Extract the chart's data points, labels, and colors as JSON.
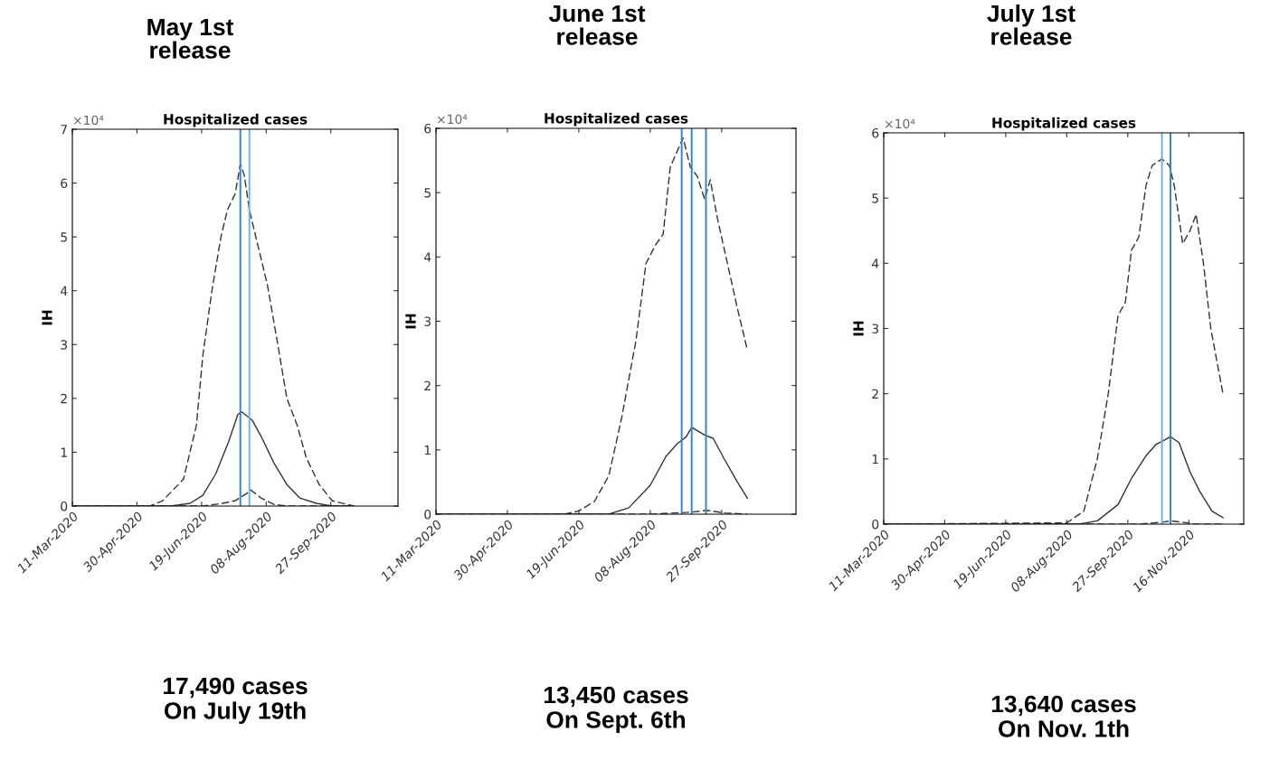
{
  "chart_data": [
    {
      "type": "line",
      "title": "May 1st\nrelease",
      "subtitle": "Hospitalized cases",
      "ylabel": "IH",
      "annotations": [
        "×10⁴",
        "17,490 cases\nOn July 19th"
      ],
      "xlim": [
        "2020-03-11",
        "2020-11-18"
      ],
      "xticks": [
        {
          "value": "2020-03-11",
          "label": "11-Mar-2020"
        },
        {
          "value": "2020-04-30",
          "label": "30-Apr-2020"
        },
        {
          "value": "2020-06-19",
          "label": "19-Jun-2020"
        },
        {
          "value": "2020-08-08",
          "label": "08-Aug-2020"
        },
        {
          "value": "2020-09-27",
          "label": "27-Sep-2020"
        }
      ],
      "ylim": [
        0,
        7
      ],
      "yticks": [
        0,
        1,
        2,
        3,
        4,
        5,
        6,
        7
      ],
      "grid": false,
      "marker": "none",
      "ref_lines": [
        {
          "axis": "x",
          "value": "2020-07-19",
          "label": null,
          "color": "#2f86cc"
        },
        {
          "axis": "x",
          "value": "2020-07-26",
          "label": null,
          "color": "#6bb3e6"
        }
      ],
      "series": [
        {
          "color": "#333333",
          "line_style": "dashed",
          "x": [
            "2020-03-11",
            "2020-05-10",
            "2020-05-20",
            "2020-06-05",
            "2020-06-15",
            "2020-06-20",
            "2020-06-27",
            "2020-07-04",
            "2020-07-09",
            "2020-07-15",
            "2020-07-19",
            "2020-07-22",
            "2020-07-26",
            "2020-08-02",
            "2020-08-09",
            "2020-08-17",
            "2020-08-24",
            "2020-09-01",
            "2020-09-08",
            "2020-09-18",
            "2020-09-28",
            "2020-10-15"
          ],
          "values": [
            0,
            0,
            0.1,
            0.5,
            1.5,
            2.8,
            4.0,
            5.0,
            5.5,
            5.8,
            6.35,
            6.15,
            5.5,
            4.8,
            4.1,
            3.0,
            2.0,
            1.5,
            0.9,
            0.4,
            0.1,
            0
          ]
        },
        {
          "color": "#333333",
          "line_style": "solid",
          "x": [
            "2020-03-11",
            "2020-05-26",
            "2020-06-10",
            "2020-06-20",
            "2020-06-30",
            "2020-07-10",
            "2020-07-17",
            "2020-07-20",
            "2020-07-28",
            "2020-08-04",
            "2020-08-14",
            "2020-08-24",
            "2020-09-03",
            "2020-09-16",
            "2020-09-28",
            "2020-10-15"
          ],
          "values": [
            0,
            0,
            0.05,
            0.2,
            0.6,
            1.2,
            1.7,
            1.75,
            1.6,
            1.3,
            0.8,
            0.4,
            0.15,
            0.05,
            0,
            0
          ]
        },
        {
          "color": "#333333",
          "line_style": "dashed",
          "x": [
            "2020-03-11",
            "2020-06-20",
            "2020-07-05",
            "2020-07-15",
            "2020-07-25",
            "2020-07-27",
            "2020-08-04",
            "2020-08-14",
            "2020-08-24",
            "2020-10-15"
          ],
          "values": [
            0,
            0,
            0.05,
            0.1,
            0.25,
            0.3,
            0.15,
            0.03,
            0,
            0
          ]
        }
      ]
    },
    {
      "type": "line",
      "title": "June 1st\nrelease",
      "subtitle": "Hospitalized cases",
      "ylabel": "IH",
      "annotations": [
        "×10⁴",
        "13,450 cases\nOn Sept. 6th"
      ],
      "xlim": [
        "2020-03-11",
        "2020-11-18"
      ],
      "xticks": [
        {
          "value": "2020-03-11",
          "label": "11-Mar-2020"
        },
        {
          "value": "2020-04-30",
          "label": "30-Apr-2020"
        },
        {
          "value": "2020-06-19",
          "label": "19-Jun-2020"
        },
        {
          "value": "2020-08-08",
          "label": "08-Aug-2020"
        },
        {
          "value": "2020-09-27",
          "label": "27-Sep-2020"
        }
      ],
      "ylim": [
        0,
        6
      ],
      "yticks": [
        0,
        1,
        2,
        3,
        4,
        5,
        6
      ],
      "grid": false,
      "marker": "none",
      "ref_lines": [
        {
          "axis": "x",
          "value": "2020-08-30",
          "label": null,
          "color": "#2f86cc"
        },
        {
          "axis": "x",
          "value": "2020-09-06",
          "label": null,
          "color": "#2f86cc"
        },
        {
          "axis": "x",
          "value": "2020-09-16",
          "label": null,
          "color": "#2f86cc"
        }
      ],
      "series": [
        {
          "color": "#333333",
          "line_style": "dashed",
          "x": [
            "2020-03-11",
            "2020-06-09",
            "2020-06-19",
            "2020-06-30",
            "2020-07-10",
            "2020-07-19",
            "2020-07-29",
            "2020-08-05",
            "2020-08-12",
            "2020-08-17",
            "2020-08-22",
            "2020-08-25",
            "2020-08-31",
            "2020-09-05",
            "2020-09-10",
            "2020-09-15",
            "2020-09-19",
            "2020-09-24",
            "2020-10-01",
            "2020-10-08",
            "2020-10-15"
          ],
          "values": [
            0,
            0,
            0.05,
            0.2,
            0.6,
            1.5,
            2.7,
            3.9,
            4.2,
            4.35,
            5.4,
            5.55,
            5.85,
            5.4,
            5.25,
            4.9,
            5.2,
            4.6,
            3.9,
            3.2,
            2.55
          ]
        },
        {
          "color": "#333333",
          "line_style": "solid",
          "x": [
            "2020-03-11",
            "2020-07-10",
            "2020-07-24",
            "2020-08-08",
            "2020-08-19",
            "2020-08-27",
            "2020-09-02",
            "2020-09-06",
            "2020-09-15",
            "2020-09-21",
            "2020-09-29",
            "2020-10-08",
            "2020-10-15"
          ],
          "values": [
            0,
            0,
            0.1,
            0.45,
            0.9,
            1.1,
            1.2,
            1.35,
            1.23,
            1.18,
            0.85,
            0.5,
            0.25
          ]
        },
        {
          "color": "#333333",
          "line_style": "dashed",
          "x": [
            "2020-03-11",
            "2020-08-08",
            "2020-09-05",
            "2020-09-17",
            "2020-09-29",
            "2020-10-15"
          ],
          "values": [
            0,
            0,
            0.03,
            0.06,
            0.02,
            0
          ]
        }
      ]
    },
    {
      "type": "line",
      "title": "July 1st\nrelease",
      "subtitle": "Hospitalized cases",
      "ylabel": "IH",
      "annotations": [
        "×10⁴",
        "13,640 cases\nOn Nov. 1th"
      ],
      "xlim": [
        "2020-03-11",
        "2020-12-31"
      ],
      "xticks": [
        {
          "value": "2020-03-11",
          "label": "11-Mar-2020"
        },
        {
          "value": "2020-04-30",
          "label": "30-Apr-2020"
        },
        {
          "value": "2020-06-19",
          "label": "19-Jun-2020"
        },
        {
          "value": "2020-08-08",
          "label": "08-Aug-2020"
        },
        {
          "value": "2020-09-27",
          "label": "27-Sep-2020"
        },
        {
          "value": "2020-11-16",
          "label": "16-Nov-2020"
        }
      ],
      "ylim": [
        0,
        6
      ],
      "yticks": [
        0,
        1,
        2,
        3,
        4,
        5,
        6
      ],
      "grid": false,
      "marker": "none",
      "ref_lines": [
        {
          "axis": "x",
          "value": "2020-10-25",
          "label": null,
          "color": "#6bb3e6"
        },
        {
          "axis": "x",
          "value": "2020-11-01",
          "label": null,
          "color": "#2f86cc"
        }
      ],
      "series": [
        {
          "color": "#333333",
          "line_style": "dashed",
          "x": [
            "2020-03-11",
            "2020-08-08",
            "2020-08-22",
            "2020-09-02",
            "2020-09-11",
            "2020-09-19",
            "2020-09-25",
            "2020-09-30",
            "2020-10-06",
            "2020-10-12",
            "2020-10-17",
            "2020-10-25",
            "2020-10-31",
            "2020-11-04",
            "2020-11-11",
            "2020-11-17",
            "2020-11-22",
            "2020-11-28",
            "2020-12-04",
            "2020-12-14"
          ],
          "values": [
            0,
            0.02,
            0.2,
            1.0,
            2.0,
            3.2,
            3.4,
            4.2,
            4.4,
            5.2,
            5.5,
            5.6,
            5.5,
            5.2,
            4.3,
            4.5,
            4.75,
            4.0,
            3.0,
            2.0
          ]
        },
        {
          "color": "#333333",
          "line_style": "solid",
          "x": [
            "2020-03-11",
            "2020-08-18",
            "2020-09-02",
            "2020-09-19",
            "2020-09-30",
            "2020-10-12",
            "2020-10-20",
            "2020-11-01",
            "2020-11-08",
            "2020-11-17",
            "2020-11-25",
            "2020-12-05",
            "2020-12-14"
          ],
          "values": [
            0,
            0,
            0.05,
            0.3,
            0.7,
            1.05,
            1.22,
            1.34,
            1.25,
            0.8,
            0.5,
            0.2,
            0.1
          ]
        },
        {
          "color": "#333333",
          "line_style": "dashed",
          "x": [
            "2020-03-11",
            "2020-10-07",
            "2020-10-25",
            "2020-11-01",
            "2020-11-11",
            "2020-11-21",
            "2020-12-14"
          ],
          "values": [
            0,
            0,
            0.03,
            0.05,
            0.03,
            0,
            0
          ]
        }
      ]
    }
  ]
}
